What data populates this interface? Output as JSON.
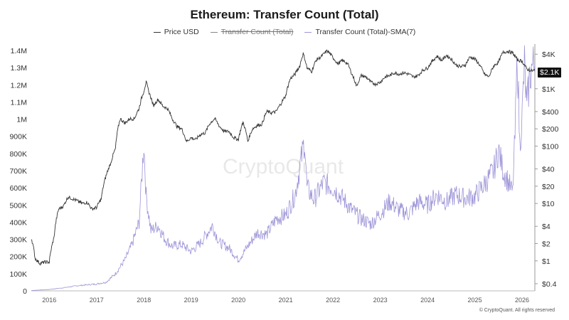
{
  "chart_data": {
    "type": "line",
    "title": "Ethereum: Transfer Count (Total)",
    "legend": [
      {
        "name": "Price USD",
        "color": "#333333",
        "visible": true
      },
      {
        "name": "Transfer Count (Total)",
        "color": "#777777",
        "visible": false
      },
      {
        "name": "Transfer Count (Total)-SMA(7)",
        "color": "#9d95d8",
        "visible": true
      }
    ],
    "legend_position": "top-center",
    "grid": false,
    "x_axis": {
      "ticks": [
        "2016",
        "2017",
        "2018",
        "2019",
        "2020",
        "2021",
        "2022",
        "2023",
        "2024",
        "2025",
        "2026"
      ],
      "range": [
        2015.62,
        2026.27
      ]
    },
    "y_left": {
      "ticks": [
        "0",
        "100K",
        "200K",
        "300K",
        "400K",
        "500K",
        "600K",
        "700K",
        "800K",
        "900K",
        "1M",
        "1.1M",
        "1.2M",
        "1.3M",
        "1.4M"
      ],
      "range": [
        0,
        1400000
      ]
    },
    "y_right": {
      "scale": "log",
      "ticks": [
        "$4K",
        "$1K",
        "$400",
        "$200",
        "$100",
        "$40",
        "$20",
        "$10",
        "$4",
        "$2",
        "$1",
        "$0.4"
      ],
      "tick_values": [
        4000,
        1000,
        400,
        200,
        100,
        40,
        20,
        10,
        4,
        2,
        1,
        0.4
      ],
      "range": [
        0.3,
        6000
      ]
    },
    "current_price_label": "$2.1K",
    "series": [
      {
        "name": "Price USD",
        "axis": "right",
        "points": [
          [
            2015.62,
            2.5
          ],
          [
            2015.7,
            1.1
          ],
          [
            2015.8,
            0.9
          ],
          [
            2015.9,
            0.95
          ],
          [
            2016.0,
            0.95
          ],
          [
            2016.1,
            2.5
          ],
          [
            2016.2,
            8
          ],
          [
            2016.3,
            9
          ],
          [
            2016.4,
            13
          ],
          [
            2016.5,
            12
          ],
          [
            2016.6,
            11
          ],
          [
            2016.7,
            10
          ],
          [
            2016.8,
            10.5
          ],
          [
            2016.9,
            8
          ],
          [
            2017.0,
            8.5
          ],
          [
            2017.1,
            12
          ],
          [
            2017.2,
            30
          ],
          [
            2017.3,
            50
          ],
          [
            2017.4,
            90
          ],
          [
            2017.5,
            300
          ],
          [
            2017.6,
            250
          ],
          [
            2017.7,
            300
          ],
          [
            2017.8,
            300
          ],
          [
            2017.9,
            450
          ],
          [
            2018.0,
            900
          ],
          [
            2018.05,
            1300
          ],
          [
            2018.1,
            900
          ],
          [
            2018.2,
            500
          ],
          [
            2018.3,
            650
          ],
          [
            2018.4,
            500
          ],
          [
            2018.5,
            450
          ],
          [
            2018.6,
            300
          ],
          [
            2018.7,
            220
          ],
          [
            2018.8,
            200
          ],
          [
            2018.9,
            120
          ],
          [
            2019.0,
            140
          ],
          [
            2019.1,
            130
          ],
          [
            2019.2,
            160
          ],
          [
            2019.3,
            170
          ],
          [
            2019.4,
            250
          ],
          [
            2019.5,
            300
          ],
          [
            2019.6,
            220
          ],
          [
            2019.7,
            180
          ],
          [
            2019.8,
            180
          ],
          [
            2019.9,
            140
          ],
          [
            2020.0,
            130
          ],
          [
            2020.1,
            260
          ],
          [
            2020.2,
            120
          ],
          [
            2020.3,
            200
          ],
          [
            2020.4,
            230
          ],
          [
            2020.5,
            240
          ],
          [
            2020.6,
            400
          ],
          [
            2020.7,
            380
          ],
          [
            2020.8,
            400
          ],
          [
            2020.9,
            550
          ],
          [
            2021.0,
            750
          ],
          [
            2021.1,
            1500
          ],
          [
            2021.2,
            1800
          ],
          [
            2021.3,
            2500
          ],
          [
            2021.37,
            4100
          ],
          [
            2021.45,
            2300
          ],
          [
            2021.55,
            2000
          ],
          [
            2021.65,
            3200
          ],
          [
            2021.75,
            3600
          ],
          [
            2021.88,
            4600
          ],
          [
            2022.0,
            3500
          ],
          [
            2022.1,
            2700
          ],
          [
            2022.2,
            3100
          ],
          [
            2022.3,
            2800
          ],
          [
            2022.4,
            1800
          ],
          [
            2022.5,
            1100
          ],
          [
            2022.6,
            1700
          ],
          [
            2022.7,
            1600
          ],
          [
            2022.8,
            1300
          ],
          [
            2022.9,
            1200
          ],
          [
            2023.0,
            1300
          ],
          [
            2023.1,
            1600
          ],
          [
            2023.2,
            1700
          ],
          [
            2023.3,
            1900
          ],
          [
            2023.4,
            1800
          ],
          [
            2023.5,
            1900
          ],
          [
            2023.6,
            1800
          ],
          [
            2023.7,
            1600
          ],
          [
            2023.8,
            1700
          ],
          [
            2023.9,
            2100
          ],
          [
            2024.0,
            2300
          ],
          [
            2024.1,
            3000
          ],
          [
            2024.2,
            3700
          ],
          [
            2024.3,
            3100
          ],
          [
            2024.4,
            3800
          ],
          [
            2024.5,
            3300
          ],
          [
            2024.6,
            2600
          ],
          [
            2024.7,
            2400
          ],
          [
            2024.8,
            2600
          ],
          [
            2024.9,
            3600
          ],
          [
            2025.0,
            3300
          ],
          [
            2025.1,
            2600
          ],
          [
            2025.2,
            1800
          ],
          [
            2025.3,
            1600
          ],
          [
            2025.4,
            2500
          ],
          [
            2025.5,
            2900
          ],
          [
            2025.6,
            4300
          ],
          [
            2025.7,
            4500
          ],
          [
            2025.8,
            4200
          ],
          [
            2025.9,
            3200
          ],
          [
            2026.0,
            3000
          ],
          [
            2026.1,
            2200
          ],
          [
            2026.2,
            2050
          ],
          [
            2026.27,
            2100
          ]
        ]
      },
      {
        "name": "Transfer Count (Total)-SMA(7)",
        "axis": "left",
        "points": [
          [
            2015.62,
            2000
          ],
          [
            2016.0,
            8000
          ],
          [
            2016.3,
            18000
          ],
          [
            2016.6,
            30000
          ],
          [
            2017.0,
            40000
          ],
          [
            2017.2,
            50000
          ],
          [
            2017.4,
            100000
          ],
          [
            2017.6,
            180000
          ],
          [
            2017.75,
            270000
          ],
          [
            2017.9,
            400000
          ],
          [
            2018.0,
            860000
          ],
          [
            2018.05,
            550000
          ],
          [
            2018.15,
            350000
          ],
          [
            2018.3,
            380000
          ],
          [
            2018.45,
            300000
          ],
          [
            2018.6,
            260000
          ],
          [
            2018.8,
            270000
          ],
          [
            2019.0,
            230000
          ],
          [
            2019.2,
            280000
          ],
          [
            2019.45,
            380000
          ],
          [
            2019.6,
            280000
          ],
          [
            2019.8,
            250000
          ],
          [
            2020.0,
            180000
          ],
          [
            2020.2,
            260000
          ],
          [
            2020.4,
            340000
          ],
          [
            2020.6,
            330000
          ],
          [
            2020.8,
            420000
          ],
          [
            2021.0,
            440000
          ],
          [
            2021.2,
            560000
          ],
          [
            2021.4,
            880000
          ],
          [
            2021.45,
            600000
          ],
          [
            2021.6,
            530000
          ],
          [
            2021.8,
            630000
          ],
          [
            2022.0,
            600000
          ],
          [
            2022.2,
            540000
          ],
          [
            2022.4,
            470000
          ],
          [
            2022.6,
            420000
          ],
          [
            2022.8,
            390000
          ],
          [
            2023.0,
            450000
          ],
          [
            2023.2,
            520000
          ],
          [
            2023.4,
            470000
          ],
          [
            2023.6,
            450000
          ],
          [
            2023.8,
            520000
          ],
          [
            2024.0,
            500000
          ],
          [
            2024.2,
            560000
          ],
          [
            2024.4,
            520000
          ],
          [
            2024.6,
            560000
          ],
          [
            2024.8,
            540000
          ],
          [
            2025.0,
            550000
          ],
          [
            2025.2,
            620000
          ],
          [
            2025.4,
            700000
          ],
          [
            2025.5,
            820000
          ],
          [
            2025.6,
            700000
          ],
          [
            2025.7,
            640000
          ],
          [
            2025.8,
            570000
          ],
          [
            2025.85,
            900000
          ],
          [
            2025.9,
            1380000
          ],
          [
            2025.95,
            850000
          ],
          [
            2026.0,
            1020000
          ],
          [
            2026.05,
            1320000
          ],
          [
            2026.1,
            1050000
          ],
          [
            2026.15,
            1220000
          ],
          [
            2026.2,
            1300000
          ],
          [
            2026.27,
            1320000
          ]
        ]
      }
    ],
    "watermark": "CryptoQuant"
  },
  "copyright": "© CryptoQuant. All rights reserved"
}
